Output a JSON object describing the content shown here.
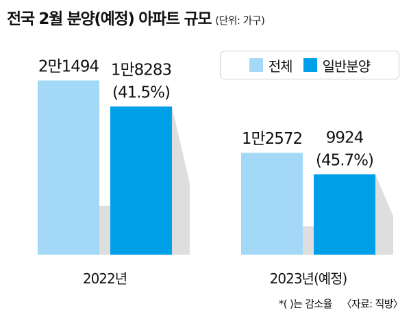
{
  "title": "전국 2월 분양(예정) 아파트 규모",
  "unit": "(단위: 가구)",
  "note": "*( )는 감소율",
  "source": "〈자료: 직방〉",
  "colors": {
    "total": "#a3d9f7",
    "general": "#00a0e9",
    "shadow": "#dedede"
  },
  "chart_data": {
    "type": "bar",
    "categories": [
      "2022년",
      "2023년(예정)"
    ],
    "series": [
      {
        "name": "전체",
        "values": [
          21494,
          12572
        ],
        "labels": [
          "2만1494",
          "1만2572"
        ]
      },
      {
        "name": "일반분양",
        "values": [
          18283,
          9924
        ],
        "labels": [
          "1만8283",
          "9924"
        ],
        "sublabels": [
          "(41.5%)",
          "(45.7%)"
        ]
      }
    ],
    "ylim": [
      0,
      25000
    ],
    "legend": "top-right",
    "grid": false
  }
}
